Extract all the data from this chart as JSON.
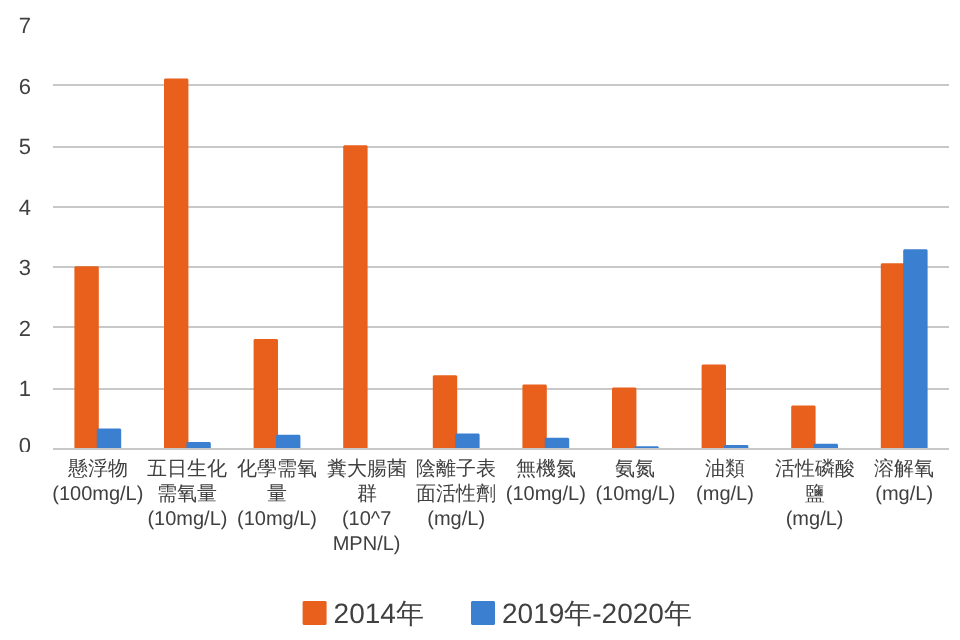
{
  "chart_data": {
    "type": "bar",
    "categories": [
      "懸浮物 (100mg/L)",
      "五日生化需氧量 (10mg/L)",
      "化學需氧量 (10mg/L)",
      "糞大腸菌群 (10^7MPN/L)",
      "陰離子表面活性劑 (mg/L)",
      "無機氮 (10mg/L)",
      "氨氮 (10mg/L)",
      "油類 (mg/L)",
      "活性磷酸鹽 (mg/L)",
      "溶解氧 (mg/L)"
    ],
    "series": [
      {
        "name": "2014年",
        "color": "#e8601c",
        "values": [
          3.0,
          6.1,
          1.8,
          5.0,
          1.2,
          1.05,
          1.0,
          1.38,
          0.7,
          3.05
        ]
      },
      {
        "name": "2019年-2020年",
        "color": "#3a7fd0",
        "values": [
          0.32,
          0.1,
          0.22,
          null,
          0.24,
          0.17,
          0.03,
          0.05,
          0.07,
          3.28
        ]
      }
    ],
    "ylim": [
      0,
      7
    ],
    "yticks": [
      0,
      1,
      2,
      3,
      4,
      5,
      6,
      7
    ],
    "grid": "y",
    "legend": "bottom"
  }
}
